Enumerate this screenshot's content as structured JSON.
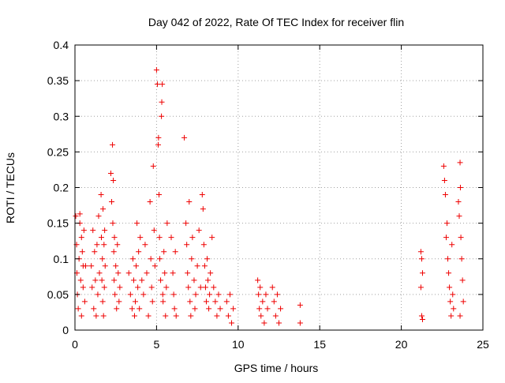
{
  "chart_data": {
    "type": "scatter",
    "title": "Day 042 of 2022, Rate Of TEC Index for receiver flin",
    "xlabel": "GPS time / hours",
    "ylabel": "ROTI / TECUs",
    "xlim": [
      0,
      25
    ],
    "ylim": [
      0,
      0.4
    ],
    "xticks": [
      "0",
      "5",
      "10",
      "15",
      "20",
      "25"
    ],
    "yticks": [
      "0",
      "0.05",
      "0.1",
      "0.15",
      "0.2",
      "0.25",
      "0.3",
      "0.35",
      "0.4"
    ],
    "grid": true,
    "marker": "plus",
    "color": "#ee0000",
    "series": [
      {
        "points": [
          [
            0.05,
            0.16
          ],
          [
            0.1,
            0.12
          ],
          [
            0.12,
            0.08
          ],
          [
            0.15,
            0.05
          ],
          [
            0.2,
            0.03
          ],
          [
            0.25,
            0.1
          ],
          [
            0.3,
            0.15
          ],
          [
            0.35,
            0.07
          ],
          [
            0.4,
            0.02
          ],
          [
            0.45,
            0.11
          ],
          [
            0.5,
            0.06
          ],
          [
            0.55,
            0.14
          ],
          [
            0.6,
            0.04
          ],
          [
            0.65,
            0.09
          ],
          [
            0.3,
            0.163
          ],
          [
            0.4,
            0.13
          ],
          [
            0.5,
            0.09
          ],
          [
            1.0,
            0.09
          ],
          [
            1.05,
            0.06
          ],
          [
            1.1,
            0.14
          ],
          [
            1.15,
            0.03
          ],
          [
            1.2,
            0.11
          ],
          [
            1.25,
            0.07
          ],
          [
            1.3,
            0.02
          ],
          [
            1.35,
            0.12
          ],
          [
            1.4,
            0.05
          ],
          [
            1.45,
            0.16
          ],
          [
            1.5,
            0.08
          ],
          [
            1.6,
            0.19
          ],
          [
            1.62,
            0.13
          ],
          [
            1.65,
            0.07
          ],
          [
            1.68,
            0.1
          ],
          [
            1.7,
            0.04
          ],
          [
            1.72,
            0.17
          ],
          [
            1.75,
            0.02
          ],
          [
            1.78,
            0.12
          ],
          [
            1.8,
            0.06
          ],
          [
            1.82,
            0.14
          ],
          [
            1.85,
            0.09
          ],
          [
            2.2,
            0.22
          ],
          [
            2.25,
            0.18
          ],
          [
            2.3,
            0.26
          ],
          [
            2.32,
            0.15
          ],
          [
            2.35,
            0.21
          ],
          [
            2.38,
            0.11
          ],
          [
            2.4,
            0.07
          ],
          [
            2.42,
            0.13
          ],
          [
            2.45,
            0.05
          ],
          [
            2.5,
            0.09
          ],
          [
            2.55,
            0.03
          ],
          [
            2.6,
            0.12
          ],
          [
            2.65,
            0.08
          ],
          [
            2.7,
            0.04
          ],
          [
            2.75,
            0.06
          ],
          [
            3.3,
            0.08
          ],
          [
            3.4,
            0.05
          ],
          [
            3.5,
            0.03
          ],
          [
            3.55,
            0.1
          ],
          [
            3.6,
            0.07
          ],
          [
            3.65,
            0.02
          ],
          [
            3.7,
            0.04
          ],
          [
            3.75,
            0.09
          ],
          [
            3.8,
            0.15
          ],
          [
            3.85,
            0.06
          ],
          [
            3.9,
            0.11
          ],
          [
            3.95,
            0.03
          ],
          [
            4.0,
            0.13
          ],
          [
            4.1,
            0.07
          ],
          [
            4.2,
            0.05
          ],
          [
            4.3,
            0.12
          ],
          [
            4.4,
            0.08
          ],
          [
            4.5,
            0.02
          ],
          [
            4.6,
            0.18
          ],
          [
            4.65,
            0.1
          ],
          [
            4.7,
            0.06
          ],
          [
            4.75,
            0.04
          ],
          [
            4.8,
            0.23
          ],
          [
            4.85,
            0.14
          ],
          [
            4.9,
            0.09
          ],
          [
            5.0,
            0.365
          ],
          [
            5.05,
            0.345
          ],
          [
            5.1,
            0.26
          ],
          [
            5.12,
            0.27
          ],
          [
            5.15,
            0.19
          ],
          [
            5.18,
            0.13
          ],
          [
            5.2,
            0.1
          ],
          [
            5.25,
            0.07
          ],
          [
            5.3,
            0.3
          ],
          [
            5.32,
            0.32
          ],
          [
            5.35,
            0.345
          ],
          [
            5.38,
            0.05
          ],
          [
            5.4,
            0.04
          ],
          [
            5.45,
            0.11
          ],
          [
            5.5,
            0.08
          ],
          [
            5.55,
            0.02
          ],
          [
            5.6,
            0.06
          ],
          [
            5.65,
            0.15
          ],
          [
            5.9,
            0.13
          ],
          [
            6.0,
            0.08
          ],
          [
            6.05,
            0.05
          ],
          [
            6.1,
            0.03
          ],
          [
            6.15,
            0.11
          ],
          [
            6.2,
            0.02
          ],
          [
            6.7,
            0.27
          ],
          [
            6.8,
            0.15
          ],
          [
            6.85,
            0.12
          ],
          [
            6.9,
            0.08
          ],
          [
            6.95,
            0.06
          ],
          [
            7.0,
            0.18
          ],
          [
            7.05,
            0.04
          ],
          [
            7.1,
            0.02
          ],
          [
            7.15,
            0.1
          ],
          [
            7.2,
            0.13
          ],
          [
            7.3,
            0.07
          ],
          [
            7.35,
            0.03
          ],
          [
            7.4,
            0.05
          ],
          [
            7.5,
            0.09
          ],
          [
            7.6,
            0.14
          ],
          [
            7.7,
            0.06
          ],
          [
            7.8,
            0.19
          ],
          [
            7.85,
            0.17
          ],
          [
            7.9,
            0.12
          ],
          [
            7.95,
            0.09
          ],
          [
            8.0,
            0.06
          ],
          [
            8.05,
            0.04
          ],
          [
            8.1,
            0.1
          ],
          [
            8.15,
            0.07
          ],
          [
            8.2,
            0.03
          ],
          [
            8.25,
            0.05
          ],
          [
            8.3,
            0.08
          ],
          [
            8.4,
            0.13
          ],
          [
            8.5,
            0.06
          ],
          [
            8.6,
            0.04
          ],
          [
            8.7,
            0.02
          ],
          [
            8.8,
            0.05
          ],
          [
            8.9,
            0.03
          ],
          [
            9.3,
            0.04
          ],
          [
            9.4,
            0.02
          ],
          [
            9.5,
            0.05
          ],
          [
            9.6,
            0.01
          ],
          [
            9.7,
            0.03
          ],
          [
            11.2,
            0.07
          ],
          [
            11.25,
            0.05
          ],
          [
            11.3,
            0.03
          ],
          [
            11.35,
            0.06
          ],
          [
            11.4,
            0.02
          ],
          [
            11.5,
            0.04
          ],
          [
            11.6,
            0.01
          ],
          [
            11.7,
            0.05
          ],
          [
            11.8,
            0.03
          ],
          [
            12.1,
            0.06
          ],
          [
            12.2,
            0.04
          ],
          [
            12.3,
            0.02
          ],
          [
            12.4,
            0.05
          ],
          [
            12.5,
            0.01
          ],
          [
            12.6,
            0.03
          ],
          [
            13.8,
            0.035
          ],
          [
            13.8,
            0.01
          ],
          [
            21.2,
            0.11
          ],
          [
            21.25,
            0.1
          ],
          [
            21.3,
            0.08
          ],
          [
            21.2,
            0.06
          ],
          [
            21.25,
            0.02
          ],
          [
            21.3,
            0.015
          ],
          [
            22.6,
            0.23
          ],
          [
            22.65,
            0.21
          ],
          [
            22.7,
            0.19
          ],
          [
            22.75,
            0.13
          ],
          [
            22.8,
            0.15
          ],
          [
            22.85,
            0.1
          ],
          [
            22.9,
            0.08
          ],
          [
            22.95,
            0.06
          ],
          [
            23.0,
            0.04
          ],
          [
            23.05,
            0.02
          ],
          [
            23.1,
            0.12
          ],
          [
            23.15,
            0.05
          ],
          [
            23.2,
            0.03
          ],
          [
            23.5,
            0.18
          ],
          [
            23.55,
            0.16
          ],
          [
            23.6,
            0.235
          ],
          [
            23.62,
            0.2
          ],
          [
            23.65,
            0.13
          ],
          [
            23.7,
            0.1
          ],
          [
            23.75,
            0.07
          ],
          [
            23.8,
            0.04
          ],
          [
            23.6,
            0.02
          ]
        ]
      }
    ]
  }
}
